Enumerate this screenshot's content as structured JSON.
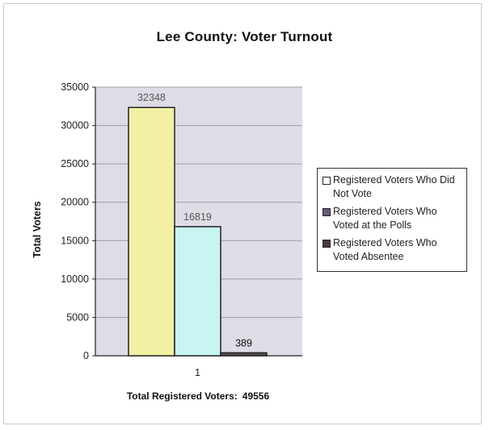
{
  "chart_data": {
    "type": "bar",
    "title": "Lee County:  Voter Turnout",
    "ylabel": "Total Voters",
    "xlabel": "",
    "categories": [
      "1"
    ],
    "ylim": [
      0,
      35000
    ],
    "yticks": [
      0,
      5000,
      10000,
      15000,
      20000,
      25000,
      30000,
      35000
    ],
    "series": [
      {
        "name": "Registered Voters Who Did Not Vote",
        "values": [
          32348
        ],
        "color": "#f3f0a4"
      },
      {
        "name": "Registered Voters Who Voted at the Polls",
        "values": [
          16819
        ],
        "color": "#c8f4f2"
      },
      {
        "name": "Registered Voters Who Voted Absentee",
        "values": [
          389
        ],
        "color": "#5a4a56"
      }
    ],
    "data_labels": [
      "32348",
      "16819",
      "389"
    ],
    "grid": true,
    "legend_position": "right",
    "plot_background": "#dedde6"
  },
  "footer": {
    "label": "Total Registered Voters:",
    "value": "49556"
  },
  "legend_swatch_colors": [
    "#ffffff",
    "#6a5a78",
    "#4a3a40"
  ]
}
